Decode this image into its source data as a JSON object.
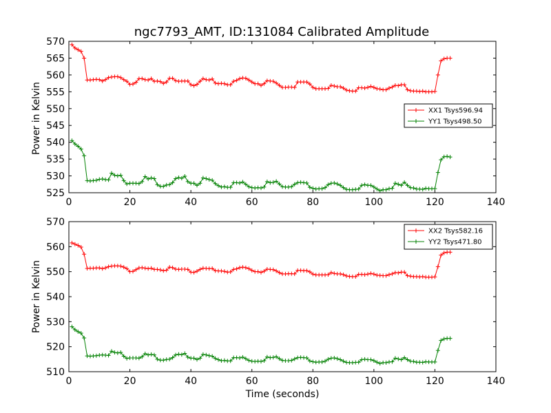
{
  "chart_data": [
    {
      "type": "line",
      "title": "ngc7793_AMT, ID:131084 Calibrated Amplitude",
      "xlabel": "",
      "ylabel": "Power in Kelvin",
      "xlim": [
        0,
        140
      ],
      "ylim": [
        525,
        570
      ],
      "xticks": [
        0,
        20,
        40,
        60,
        80,
        100,
        120,
        140
      ],
      "yticks": [
        525,
        530,
        535,
        540,
        545,
        550,
        555,
        560,
        565,
        570
      ],
      "grid": false,
      "legend_position": "center-right",
      "series": [
        {
          "name": "XX1 Tsys596.94",
          "color": "#ff0000",
          "x": [
            1,
            2,
            3,
            4,
            5,
            6,
            7,
            8,
            9,
            10,
            11,
            12,
            13,
            14,
            15,
            16,
            17,
            18,
            19,
            20,
            21,
            22,
            23,
            24,
            25,
            26,
            27,
            28,
            29,
            30,
            31,
            32,
            33,
            34,
            35,
            36,
            37,
            38,
            39,
            40,
            41,
            42,
            43,
            44,
            45,
            46,
            47,
            48,
            49,
            50,
            51,
            52,
            53,
            54,
            55,
            56,
            57,
            58,
            59,
            60,
            61,
            62,
            63,
            64,
            65,
            66,
            67,
            68,
            69,
            70,
            71,
            72,
            73,
            74,
            75,
            76,
            77,
            78,
            79,
            80,
            81,
            82,
            83,
            84,
            85,
            86,
            87,
            88,
            89,
            90,
            91,
            92,
            93,
            94,
            95,
            96,
            97,
            98,
            99,
            100,
            101,
            102,
            103,
            104,
            105,
            106,
            107,
            108,
            109,
            110,
            111,
            112,
            113,
            114,
            115,
            116,
            117,
            118,
            119,
            120,
            121,
            122,
            123,
            124,
            125
          ],
          "y": [
            569,
            568,
            567.5,
            567,
            565,
            558.5,
            558.5,
            558.6,
            558.7,
            558.6,
            558.2,
            558.6,
            559.2,
            559.4,
            559.5,
            559.5,
            559.2,
            558.6,
            558.1,
            557.2,
            557.3,
            557.8,
            558.9,
            558.9,
            558.6,
            558.5,
            558.9,
            558.1,
            558.2,
            558.0,
            557.5,
            557.9,
            559.0,
            559.0,
            558.3,
            558.1,
            558.2,
            558.2,
            558.2,
            557.1,
            556.8,
            557.2,
            558.1,
            558.9,
            558.6,
            558.5,
            558.8,
            557.6,
            557.4,
            557.5,
            557.4,
            557.1,
            557.1,
            558.1,
            558.4,
            558.9,
            559.1,
            559.0,
            558.5,
            557.9,
            557.4,
            557.4,
            556.9,
            557.4,
            558.3,
            558.2,
            558.1,
            557.6,
            556.9,
            556.3,
            556.3,
            556.4,
            556.4,
            556.3,
            557.9,
            557.9,
            557.9,
            557.9,
            557.3,
            556.3,
            555.9,
            555.9,
            555.9,
            555.9,
            556.0,
            556.9,
            556.7,
            556.5,
            556.5,
            556.1,
            555.5,
            555.3,
            555.2,
            555.2,
            556.2,
            556.2,
            556.1,
            556.3,
            556.6,
            556.3,
            555.9,
            555.8,
            555.6,
            555.6,
            556.1,
            556.4,
            556.9,
            556.8,
            557.1,
            557.1,
            555.6,
            555.3,
            555.2,
            555.2,
            555.1,
            555.2,
            555.0,
            555.0,
            555.0,
            555.1,
            560.0,
            564.2,
            564.8,
            565.0,
            565.0
          ]
        },
        {
          "name": "YY1 Tsys498.50",
          "color": "#008000",
          "x": [
            1,
            2,
            3,
            4,
            5,
            6,
            7,
            8,
            9,
            10,
            11,
            12,
            13,
            14,
            15,
            16,
            17,
            18,
            19,
            20,
            21,
            22,
            23,
            24,
            25,
            26,
            27,
            28,
            29,
            30,
            31,
            32,
            33,
            34,
            35,
            36,
            37,
            38,
            39,
            40,
            41,
            42,
            43,
            44,
            45,
            46,
            47,
            48,
            49,
            50,
            51,
            52,
            53,
            54,
            55,
            56,
            57,
            58,
            59,
            60,
            61,
            62,
            63,
            64,
            65,
            66,
            67,
            68,
            69,
            70,
            71,
            72,
            73,
            74,
            75,
            76,
            77,
            78,
            79,
            80,
            81,
            82,
            83,
            84,
            85,
            86,
            87,
            88,
            89,
            90,
            91,
            92,
            93,
            94,
            95,
            96,
            97,
            98,
            99,
            100,
            101,
            102,
            103,
            104,
            105,
            106,
            107,
            108,
            109,
            110,
            111,
            112,
            113,
            114,
            115,
            116,
            117,
            118,
            119,
            120,
            121,
            122,
            123,
            124,
            125
          ],
          "y": [
            540.5,
            539.5,
            538.8,
            538,
            536,
            528.6,
            528.5,
            528.6,
            528.7,
            529.0,
            529.1,
            528.9,
            528.8,
            530.8,
            530.2,
            530.0,
            530.2,
            528.6,
            527.6,
            527.8,
            527.8,
            527.8,
            527.7,
            528.3,
            529.8,
            529.1,
            529.4,
            529.2,
            527.4,
            526.9,
            526.9,
            527.3,
            527.4,
            528.0,
            529.2,
            529.5,
            529.3,
            529.9,
            528.3,
            527.8,
            527.8,
            527.2,
            527.8,
            529.4,
            529.2,
            528.9,
            528.7,
            527.7,
            527.1,
            526.7,
            526.8,
            526.6,
            526.6,
            528.0,
            528.0,
            527.9,
            528.2,
            527.5,
            526.8,
            526.5,
            526.4,
            526.5,
            526.4,
            526.7,
            528.3,
            528.0,
            528.1,
            528.4,
            527.6,
            526.8,
            526.7,
            526.7,
            526.8,
            527.5,
            528.0,
            528.1,
            528.0,
            527.9,
            526.6,
            526.3,
            526.1,
            526.2,
            526.2,
            526.5,
            527.4,
            527.8,
            527.9,
            527.6,
            527.2,
            526.5,
            526.0,
            525.9,
            525.9,
            526.0,
            526.1,
            527.2,
            527.4,
            527.2,
            527.2,
            526.7,
            526.1,
            525.6,
            525.9,
            525.9,
            526.2,
            526.3,
            527.8,
            527.5,
            527.2,
            528.1,
            527.2,
            526.5,
            526.4,
            526.1,
            526.1,
            526.0,
            526.3,
            526.2,
            526.2,
            526.2,
            531.0,
            534.8,
            535.7,
            535.8,
            535.6
          ]
        }
      ]
    },
    {
      "type": "line",
      "title": "",
      "xlabel": "Time (seconds)",
      "ylabel": "Power in Kelvin",
      "xlim": [
        0,
        140
      ],
      "ylim": [
        510,
        570
      ],
      "xticks": [
        0,
        20,
        40,
        60,
        80,
        100,
        120,
        140
      ],
      "yticks": [
        510,
        520,
        530,
        540,
        550,
        560,
        570
      ],
      "grid": false,
      "legend_position": "top-right",
      "series": [
        {
          "name": "XX2 Tsys582.16",
          "color": "#ff0000",
          "x": [
            1,
            2,
            3,
            4,
            5,
            6,
            7,
            8,
            9,
            10,
            11,
            12,
            13,
            14,
            15,
            16,
            17,
            18,
            19,
            20,
            21,
            22,
            23,
            24,
            25,
            26,
            27,
            28,
            29,
            30,
            31,
            32,
            33,
            34,
            35,
            36,
            37,
            38,
            39,
            40,
            41,
            42,
            43,
            44,
            45,
            46,
            47,
            48,
            49,
            50,
            51,
            52,
            53,
            54,
            55,
            56,
            57,
            58,
            59,
            60,
            61,
            62,
            63,
            64,
            65,
            66,
            67,
            68,
            69,
            70,
            71,
            72,
            73,
            74,
            75,
            76,
            77,
            78,
            79,
            80,
            81,
            82,
            83,
            84,
            85,
            86,
            87,
            88,
            89,
            90,
            91,
            92,
            93,
            94,
            95,
            96,
            97,
            98,
            99,
            100,
            101,
            102,
            103,
            104,
            105,
            106,
            107,
            108,
            109,
            110,
            111,
            112,
            113,
            114,
            115,
            116,
            117,
            118,
            119,
            120,
            121,
            122,
            123,
            124,
            125
          ],
          "y": [
            561.5,
            561,
            560.5,
            559.8,
            557,
            551.3,
            551.4,
            551.4,
            551.5,
            551.5,
            551.2,
            551.5,
            552.0,
            552.2,
            552.3,
            552.3,
            552.2,
            551.8,
            551.2,
            550.0,
            550.1,
            550.8,
            551.5,
            551.6,
            551.4,
            551.2,
            551.4,
            550.9,
            550.9,
            550.7,
            550.4,
            550.6,
            551.8,
            551.6,
            551.0,
            550.9,
            551.0,
            551.0,
            550.9,
            549.8,
            549.7,
            550.2,
            550.9,
            551.4,
            551.3,
            551.2,
            551.3,
            550.4,
            550.3,
            550.3,
            550.1,
            549.8,
            549.9,
            550.9,
            551.1,
            551.6,
            551.8,
            551.6,
            551.2,
            550.5,
            550.0,
            550.0,
            549.7,
            550.2,
            551.0,
            550.9,
            550.8,
            550.3,
            549.6,
            549.1,
            549.1,
            549.2,
            549.2,
            549.1,
            550.5,
            550.5,
            550.4,
            550.4,
            549.9,
            549.0,
            548.7,
            548.7,
            548.7,
            548.7,
            548.8,
            549.6,
            549.3,
            549.1,
            549.1,
            548.8,
            548.3,
            548.1,
            548.0,
            548.0,
            548.9,
            548.9,
            548.8,
            549.0,
            549.3,
            549.0,
            548.6,
            548.5,
            548.4,
            548.4,
            548.8,
            549.1,
            549.6,
            549.5,
            549.8,
            549.8,
            548.4,
            548.2,
            548.0,
            548.0,
            547.9,
            548.0,
            547.8,
            547.8,
            547.8,
            547.9,
            552.0,
            556.6,
            557.5,
            557.8,
            557.8
          ]
        },
        {
          "name": "YY2 Tsys471.80",
          "color": "#008000",
          "x": [
            1,
            2,
            3,
            4,
            5,
            6,
            7,
            8,
            9,
            10,
            11,
            12,
            13,
            14,
            15,
            16,
            17,
            18,
            19,
            20,
            21,
            22,
            23,
            24,
            25,
            26,
            27,
            28,
            29,
            30,
            31,
            32,
            33,
            34,
            35,
            36,
            37,
            38,
            39,
            40,
            41,
            42,
            43,
            44,
            45,
            46,
            47,
            48,
            49,
            50,
            51,
            52,
            53,
            54,
            55,
            56,
            57,
            58,
            59,
            60,
            61,
            62,
            63,
            64,
            65,
            66,
            67,
            68,
            69,
            70,
            71,
            72,
            73,
            74,
            75,
            76,
            77,
            78,
            79,
            80,
            81,
            82,
            83,
            84,
            85,
            86,
            87,
            88,
            89,
            90,
            91,
            92,
            93,
            94,
            95,
            96,
            97,
            98,
            99,
            100,
            101,
            102,
            103,
            104,
            105,
            106,
            107,
            108,
            109,
            110,
            111,
            112,
            113,
            114,
            115,
            116,
            117,
            118,
            119,
            120,
            121,
            122,
            123,
            124,
            125
          ],
          "y": [
            528,
            526.8,
            526,
            525.4,
            523.5,
            516.3,
            516.2,
            516.3,
            516.4,
            516.6,
            516.7,
            516.6,
            516.5,
            518.2,
            517.7,
            517.5,
            517.7,
            516.2,
            515.3,
            515.5,
            515.5,
            515.5,
            515.4,
            516.0,
            517.2,
            516.7,
            516.9,
            516.7,
            515.0,
            514.6,
            514.6,
            514.9,
            515.0,
            515.6,
            516.7,
            517.0,
            516.8,
            517.3,
            515.8,
            515.4,
            515.4,
            514.9,
            515.4,
            516.9,
            516.7,
            516.4,
            516.2,
            515.3,
            514.8,
            514.4,
            514.5,
            514.3,
            514.3,
            515.6,
            515.6,
            515.5,
            515.8,
            515.2,
            514.5,
            514.2,
            514.1,
            514.2,
            514.1,
            514.4,
            515.9,
            515.6,
            515.7,
            516.0,
            515.2,
            514.5,
            514.4,
            514.4,
            514.5,
            515.1,
            515.6,
            515.7,
            515.6,
            515.5,
            514.3,
            514.0,
            513.8,
            513.9,
            513.9,
            514.2,
            515.0,
            515.4,
            515.5,
            515.2,
            514.8,
            514.2,
            513.7,
            513.6,
            513.6,
            513.7,
            513.8,
            514.8,
            515.0,
            514.8,
            514.8,
            514.4,
            513.8,
            513.3,
            513.6,
            513.6,
            513.9,
            514.0,
            515.4,
            515.1,
            514.8,
            515.6,
            514.8,
            514.2,
            514.1,
            513.8,
            513.8,
            513.7,
            514.0,
            513.9,
            513.9,
            513.9,
            518.5,
            522.5,
            523.1,
            523.3,
            523.3
          ]
        }
      ]
    }
  ]
}
